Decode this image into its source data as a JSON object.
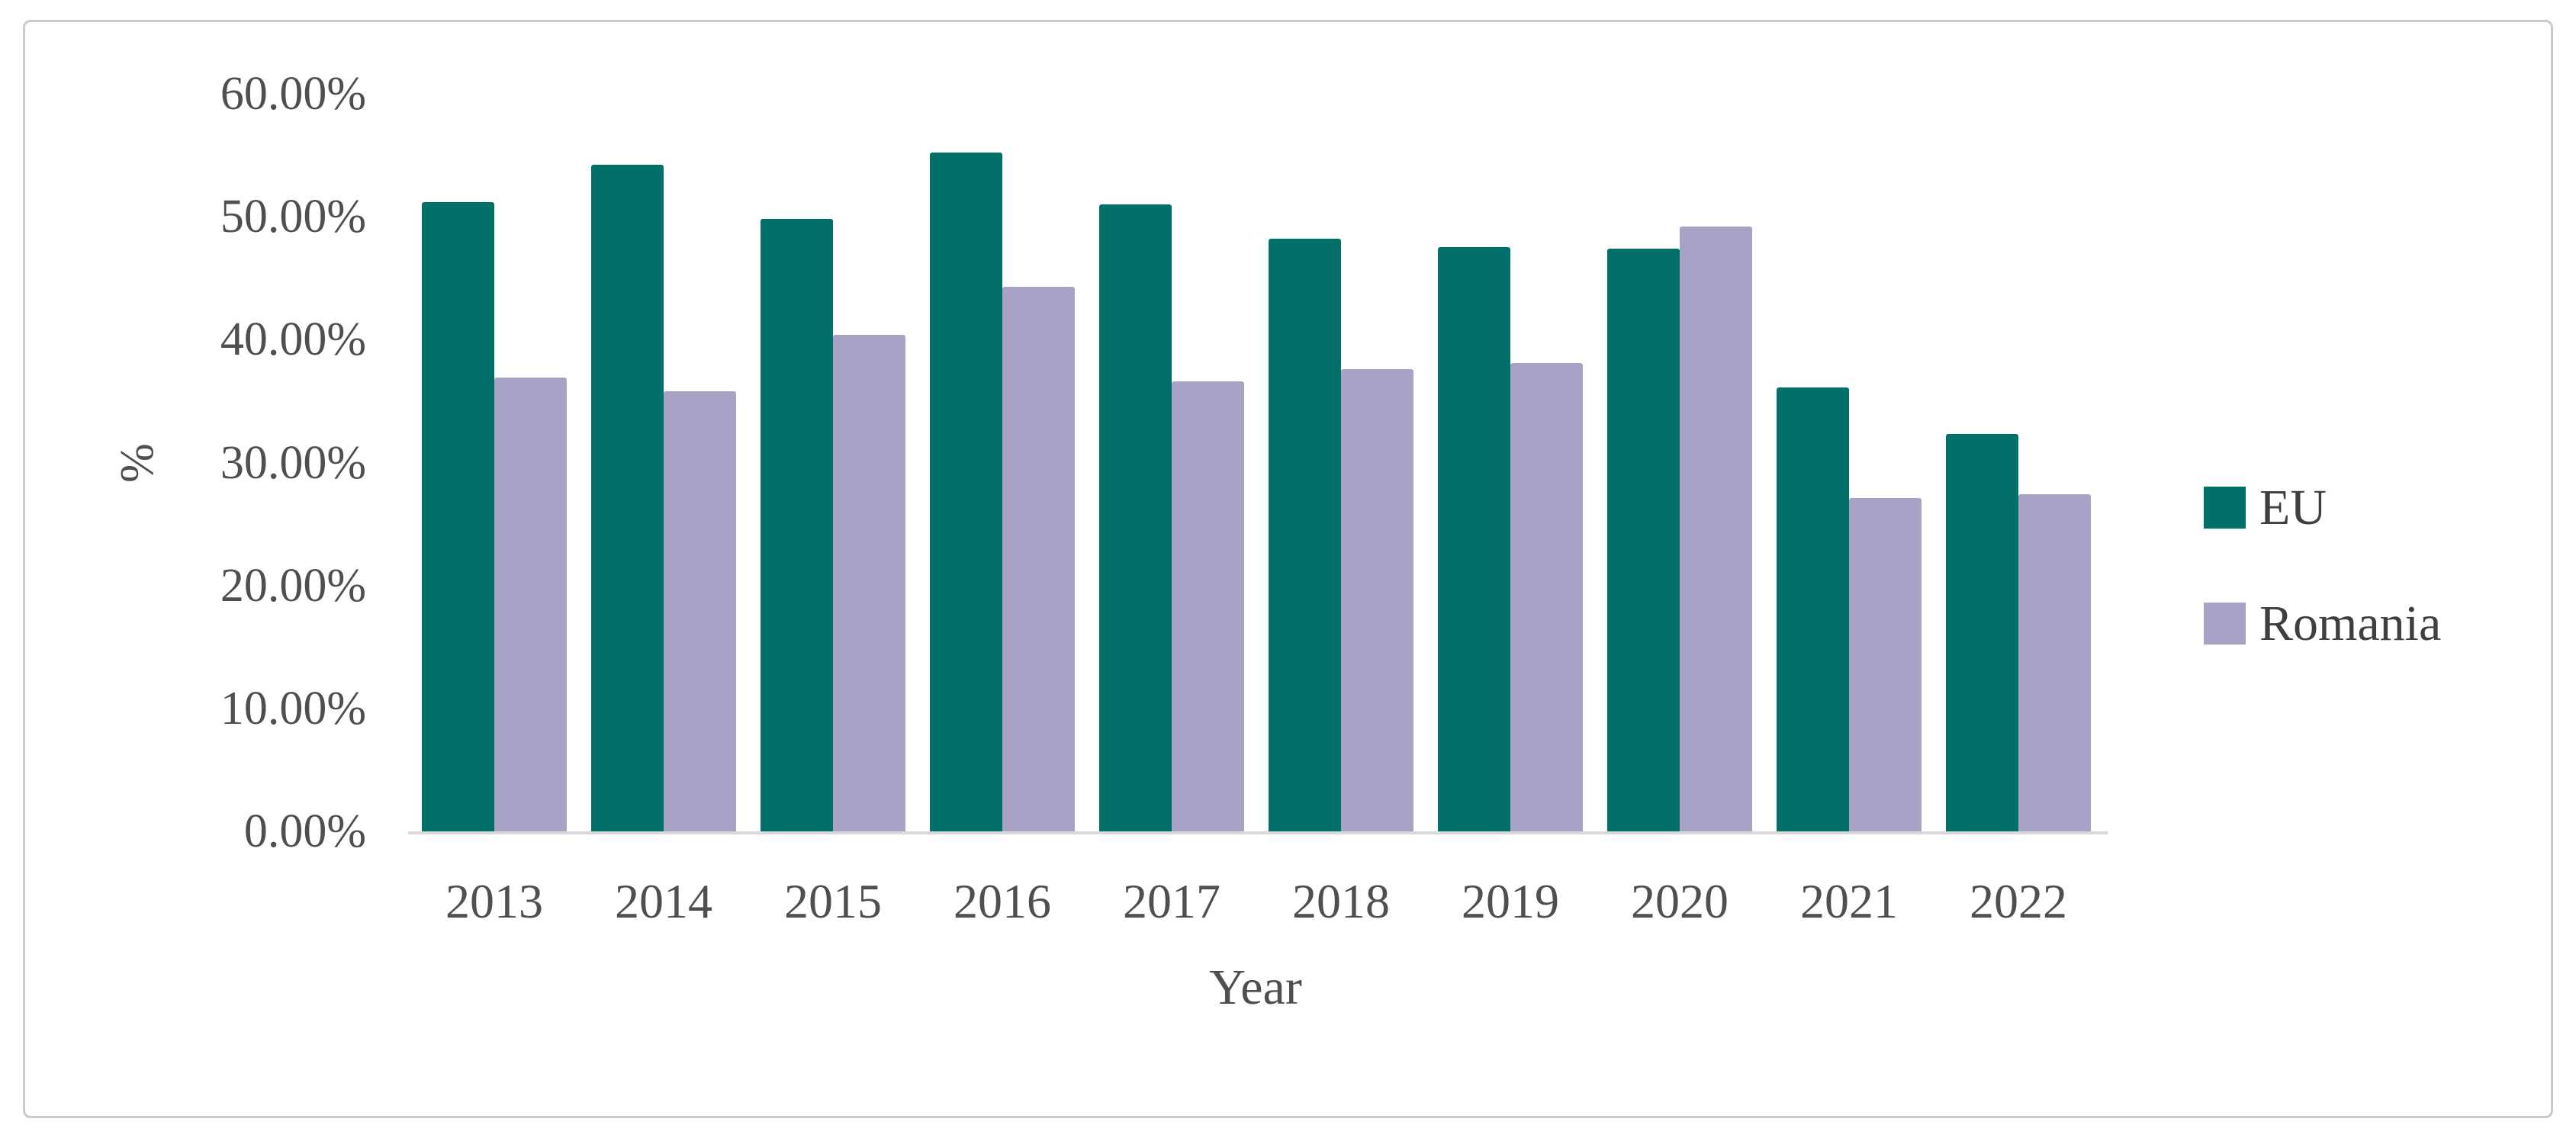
{
  "figure": {
    "background": "#ffffff",
    "border_color": "#cacaca"
  },
  "chart_data": {
    "type": "bar",
    "title": "",
    "categories": [
      "2013",
      "2014",
      "2015",
      "2016",
      "2017",
      "2018",
      "2019",
      "2020",
      "2021",
      "2022"
    ],
    "series": [
      {
        "name": "EU",
        "color": "#017068",
        "values": [
          51.2,
          54.2,
          49.8,
          55.2,
          51.0,
          48.2,
          47.5,
          47.4,
          36.1,
          32.3
        ]
      },
      {
        "name": "Romania",
        "color": "#a6a3c7",
        "values": [
          36.9,
          35.8,
          40.4,
          44.3,
          36.6,
          37.6,
          38.1,
          49.2,
          27.1,
          27.4
        ]
      }
    ],
    "xlabel": "Year",
    "ylabel": "%",
    "ylim": [
      0,
      60
    ],
    "ytick_step": 10,
    "ytick_labels": [
      "0.00%",
      "10.00%",
      "20.00%",
      "30.00%",
      "40.00%",
      "50.00%",
      "60.00%"
    ],
    "grid": false,
    "legend_position": "right",
    "axis_line_color": "#d9d9d9",
    "text_color": "#4f4f4f"
  }
}
